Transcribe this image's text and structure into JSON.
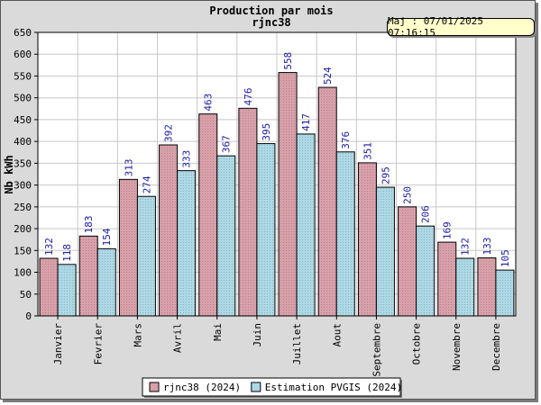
{
  "chart_data": {
    "type": "bar",
    "title": "Production par mois",
    "subtitle": "rjnc38",
    "ylabel": "Nb kWh",
    "xlabel": "",
    "ylim": [
      0,
      650
    ],
    "ytick_step": 50,
    "grid": true,
    "legend_position": "bottom",
    "categories": [
      "Janvier",
      "Fevrier",
      "Mars",
      "Avril",
      "Mai",
      "Juin",
      "Juillet",
      "Aout",
      "Septembre",
      "Octobre",
      "Novembre",
      "Decembre"
    ],
    "series": [
      {
        "name": "rjnc38 (2024)",
        "color": "#d9a0aa",
        "values": [
          132,
          183,
          313,
          392,
          463,
          476,
          558,
          524,
          351,
          250,
          169,
          133
        ]
      },
      {
        "name": "Estimation PVGIS (2024)",
        "color": "#add8e6",
        "values": [
          118,
          154,
          274,
          333,
          367,
          395,
          417,
          376,
          295,
          206,
          132,
          105
        ]
      }
    ]
  },
  "update_badge": {
    "text": "Maj : 07/01/2025 07:16:15"
  }
}
